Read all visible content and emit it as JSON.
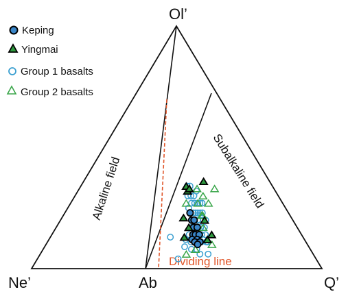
{
  "chart_data": {
    "type": "scatter",
    "subtype": "ternary",
    "vertices": {
      "top": "Ol’",
      "bottom_left": "Ne’",
      "bottom_middle": "Ab",
      "bottom_right": "Q’"
    },
    "field_labels": {
      "alkaline": "Alkaline field",
      "subalkaline": "Subalkaline field"
    },
    "dividing_line": {
      "label": "Dividing line",
      "color": "#e0562a"
    },
    "legend": {
      "placement": "top-left",
      "entries": [
        {
          "label": "Keping",
          "marker": "circle",
          "fill": "#1f77b4",
          "stroke": "#000000"
        },
        {
          "label": "Yingmai",
          "marker": "triangle",
          "fill": "#2ca02c",
          "stroke": "#000000"
        },
        {
          "label": "Group 1 basalts",
          "marker": "circle",
          "fill": "none",
          "stroke": "#3a9fd0"
        },
        {
          "label": "Group 2 basalts",
          "marker": "triangle",
          "fill": "none",
          "stroke": "#3aa64a"
        }
      ]
    },
    "axis_note": "Each point given as [Ne’/Q’ axis value (-1 = Ne’, 0 = Ab, 1 = Q’), Ol’ fraction (0 to 1)]",
    "series": [
      {
        "name": "Group 1 basalts",
        "marker": "circle-open",
        "color": "#3a9fd0",
        "points": [
          [
            -0.05,
            0.13
          ],
          [
            0.01,
            0.04
          ],
          [
            0.11,
            0.34
          ],
          [
            0.14,
            0.34
          ],
          [
            0.11,
            0.3
          ],
          [
            0.14,
            0.3
          ],
          [
            0.17,
            0.3
          ],
          [
            0.2,
            0.32
          ],
          [
            0.24,
            0.27
          ],
          [
            0.15,
            0.23
          ],
          [
            0.17,
            0.23
          ],
          [
            0.19,
            0.23
          ],
          [
            0.21,
            0.23
          ],
          [
            0.23,
            0.23
          ],
          [
            0.14,
            0.27
          ],
          [
            0.17,
            0.27
          ],
          [
            0.2,
            0.27
          ],
          [
            0.22,
            0.27
          ],
          [
            0.15,
            0.2
          ],
          [
            0.18,
            0.2
          ],
          [
            0.2,
            0.2
          ],
          [
            0.23,
            0.2
          ],
          [
            0.12,
            0.17
          ],
          [
            0.16,
            0.17
          ],
          [
            0.2,
            0.17
          ],
          [
            0.23,
            0.17
          ],
          [
            0.1,
            0.14
          ],
          [
            0.13,
            0.14
          ],
          [
            0.17,
            0.14
          ],
          [
            0.2,
            0.14
          ],
          [
            0.23,
            0.14
          ],
          [
            0.11,
            0.11
          ],
          [
            0.15,
            0.11
          ],
          [
            0.19,
            0.11
          ],
          [
            0.23,
            0.11
          ],
          [
            0.06,
            0.09
          ],
          [
            0.11,
            0.08
          ],
          [
            0.15,
            0.08
          ],
          [
            0.17,
            0.06
          ],
          [
            0.23,
            0.06
          ],
          [
            0.11,
            0.25
          ],
          [
            0.25,
            0.2
          ],
          [
            0.24,
            0.11
          ],
          [
            0.07,
            0.12
          ]
        ]
      },
      {
        "name": "Group 2 basalts",
        "marker": "triangle-open",
        "color": "#3aa64a",
        "points": [
          [
            0.26,
            0.3
          ],
          [
            0.2,
            0.27
          ],
          [
            0.22,
            0.22
          ],
          [
            0.23,
            0.22
          ],
          [
            0.3,
            0.27
          ],
          [
            0.09,
            0.27
          ],
          [
            0.22,
            0.17
          ],
          [
            0.14,
            0.08
          ],
          [
            0.07,
            0.06
          ],
          [
            0.24,
            0.12
          ],
          [
            0.27,
            0.1
          ],
          [
            0.21,
            0.33
          ],
          [
            0.39,
            0.33
          ]
        ]
      },
      {
        "name": "Keping",
        "marker": "circle-filled",
        "color": "#3a86c8",
        "points": [
          [
            0.13,
            0.2
          ],
          [
            0.15,
            0.2
          ],
          [
            0.14,
            0.17
          ],
          [
            0.17,
            0.17
          ],
          [
            0.13,
            0.14
          ],
          [
            0.15,
            0.14
          ],
          [
            0.18,
            0.14
          ],
          [
            0.12,
            0.12
          ],
          [
            0.16,
            0.12
          ],
          [
            0.14,
            0.11
          ],
          [
            0.18,
            0.11
          ],
          [
            0.16,
            0.1
          ],
          [
            0.12,
            0.23
          ]
        ]
      },
      {
        "name": "Yingmai",
        "marker": "triangle-filled",
        "color": "#2e9a3e",
        "points": [
          [
            0.11,
            0.32
          ],
          [
            0.1,
            0.34
          ],
          [
            0.13,
            0.33
          ],
          [
            0.29,
            0.36
          ],
          [
            0.06,
            0.21
          ],
          [
            0.1,
            0.17
          ],
          [
            0.06,
            0.13
          ],
          [
            0.24,
            0.2
          ],
          [
            0.24,
            0.12
          ],
          [
            0.28,
            0.14
          ]
        ]
      }
    ]
  }
}
